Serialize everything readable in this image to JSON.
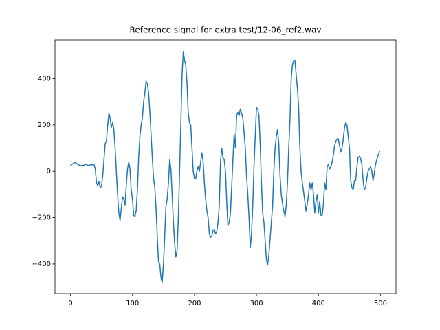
{
  "chart_data": {
    "type": "line",
    "title": "Reference signal for extra test/12-06_ref2.wav",
    "x": [
      0,
      5,
      8,
      12,
      15,
      20,
      25,
      28,
      32,
      38,
      40,
      42,
      44,
      46,
      48,
      50,
      52,
      54,
      56,
      58,
      60,
      62,
      64,
      66,
      68,
      70,
      72,
      74,
      76,
      78,
      80,
      82,
      84,
      86,
      88,
      90,
      92,
      94,
      96,
      98,
      100,
      102,
      104,
      106,
      108,
      110,
      112,
      114,
      116,
      118,
      120,
      122,
      124,
      126,
      128,
      130,
      132,
      134,
      136,
      138,
      140,
      142,
      144,
      146,
      148,
      150,
      152,
      154,
      156,
      158,
      160,
      162,
      164,
      166,
      168,
      170,
      172,
      174,
      176,
      178,
      180,
      182,
      184,
      186,
      188,
      190,
      192,
      194,
      196,
      198,
      200,
      202,
      204,
      206,
      208,
      210,
      212,
      214,
      216,
      218,
      220,
      222,
      224,
      226,
      228,
      230,
      232,
      234,
      236,
      238,
      240,
      242,
      244,
      246,
      248,
      250,
      252,
      254,
      256,
      258,
      260,
      262,
      264,
      266,
      268,
      270,
      272,
      274,
      276,
      278,
      280,
      282,
      284,
      286,
      288,
      290,
      292,
      294,
      296,
      298,
      300,
      302,
      304,
      306,
      308,
      310,
      312,
      314,
      316,
      318,
      320,
      322,
      324,
      326,
      328,
      330,
      332,
      334,
      336,
      338,
      340,
      342,
      344,
      346,
      348,
      350,
      352,
      354,
      356,
      358,
      360,
      362,
      364,
      366,
      368,
      370,
      372,
      374,
      376,
      378,
      380,
      382,
      384,
      386,
      388,
      390,
      392,
      394,
      396,
      398,
      400,
      402,
      404,
      406,
      408,
      410,
      412,
      414,
      416,
      418,
      420,
      422,
      424,
      426,
      428,
      430,
      432,
      434,
      436,
      438,
      440,
      442,
      444,
      446,
      448,
      450,
      452,
      454,
      456,
      458,
      460,
      462,
      464,
      466,
      468,
      470,
      472,
      474,
      476,
      478,
      480,
      484,
      486,
      488,
      490,
      492,
      495,
      499
    ],
    "series": [
      {
        "color": "#1f77b4",
        "values": [
          25,
          35,
          38,
          30,
          25,
          25,
          30,
          25,
          28,
          28,
          10,
          -50,
          -62,
          -45,
          -70,
          -65,
          -20,
          50,
          120,
          130,
          200,
          252,
          230,
          190,
          210,
          180,
          100,
          0,
          -100,
          -180,
          -212,
          -160,
          -110,
          -120,
          -145,
          -60,
          10,
          40,
          10,
          -80,
          -120,
          -190,
          -195,
          -170,
          -80,
          60,
          150,
          200,
          230,
          300,
          340,
          390,
          380,
          340,
          260,
          160,
          60,
          -30,
          -70,
          -160,
          -280,
          -390,
          -400,
          -460,
          -478,
          -400,
          -280,
          -150,
          -120,
          -50,
          50,
          10,
          -100,
          -220,
          -310,
          -370,
          -340,
          -200,
          0,
          200,
          420,
          518,
          480,
          460,
          380,
          250,
          210,
          200,
          100,
          0,
          -30,
          -30,
          0,
          20,
          0,
          40,
          80,
          40,
          -50,
          -120,
          -170,
          -200,
          -270,
          -285,
          -280,
          -255,
          -250,
          -270,
          -260,
          -220,
          -150,
          40,
          100,
          60,
          50,
          0,
          -130,
          -235,
          -220,
          -180,
          -70,
          50,
          160,
          100,
          240,
          255,
          240,
          270,
          250,
          230,
          170,
          100,
          -20,
          -100,
          -200,
          -330,
          -270,
          -150,
          20,
          150,
          275,
          270,
          240,
          120,
          -50,
          -180,
          -220,
          -300,
          -380,
          -405,
          -360,
          -290,
          -220,
          -150,
          0,
          100,
          150,
          180,
          120,
          -20,
          -100,
          -140,
          -170,
          -195,
          -150,
          -50,
          100,
          220,
          400,
          460,
          478,
          480,
          420,
          360,
          280,
          100,
          0,
          -50,
          -90,
          -130,
          -172,
          -140,
          -100,
          -50,
          -80,
          -50,
          -100,
          -180,
          -130,
          -100,
          -180,
          -130,
          -190,
          -190,
          -140,
          -50,
          -80,
          20,
          30,
          10,
          20,
          40,
          70,
          110,
          130,
          140,
          140,
          110,
          85,
          100,
          140,
          190,
          210,
          200,
          150,
          100,
          -40,
          -70,
          -80,
          -40,
          -40,
          20,
          60,
          65,
          55,
          30,
          -40,
          -80,
          -70,
          -30,
          0,
          20,
          0,
          -40,
          -10,
          30,
          60,
          90
        ]
      }
    ],
    "xlim": [
      -25,
      525
    ],
    "xticks": [
      0,
      100,
      200,
      300,
      400,
      500
    ],
    "ylim": [
      -528,
      568
    ],
    "yticks": [
      {
        "value": -400,
        "label": "−400"
      },
      {
        "value": -200,
        "label": "−200"
      },
      0,
      200,
      400
    ]
  }
}
